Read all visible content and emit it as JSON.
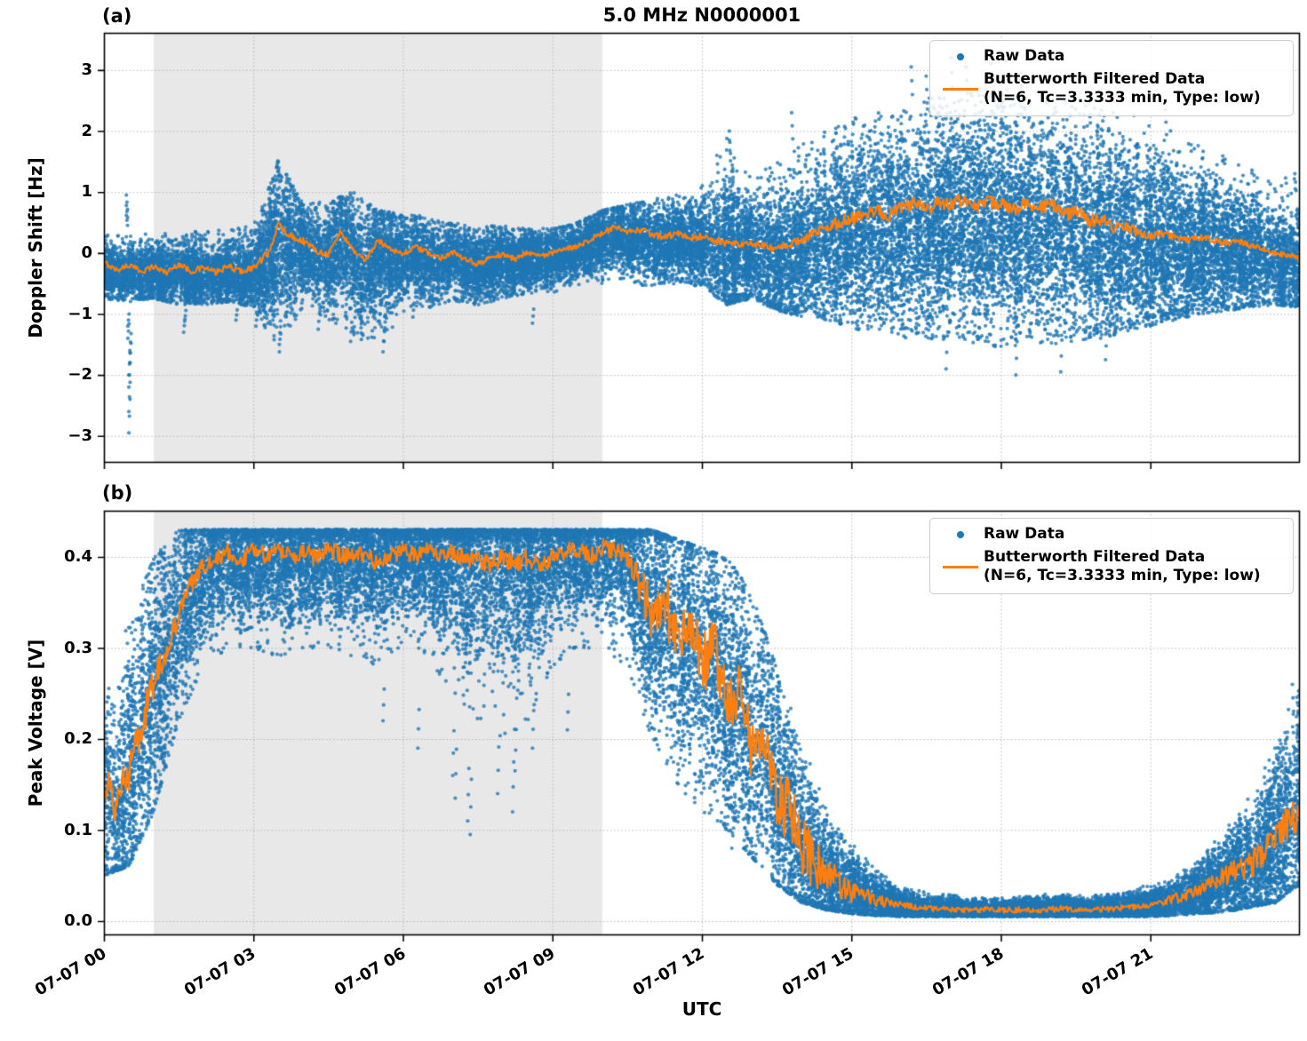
{
  "figure": {
    "title": "5.0 MHz N0000001",
    "xlabel": "UTC",
    "panel_a_tag": "(a)",
    "panel_b_tag": "(b)"
  },
  "legend": {
    "raw": "Raw Data",
    "filtered_line1": "Butterworth Filtered Data",
    "filtered_line2": "(N=6, Tc=3.3333 min, Type: low)"
  },
  "colors": {
    "raw": "#1f77b4",
    "filtered": "#ff7f0e",
    "shade": "#e8e8e8",
    "grid": "#b4b4b4",
    "spine": "#000000"
  },
  "xticks": {
    "hours": [
      0,
      3,
      6,
      9,
      12,
      15,
      18,
      21
    ],
    "labels": [
      "07-07 00",
      "07-07 03",
      "07-07 06",
      "07-07 09",
      "07-07 12",
      "07-07 15",
      "07-07 18",
      "07-07 21"
    ]
  },
  "shaded_hours": [
    1,
    10
  ],
  "chart_data": [
    {
      "id": "a",
      "type": "scatter",
      "title": "5.0 MHz N0000001",
      "xlabel": "UTC",
      "ylabel": "Doppler Shift [Hz]",
      "xlim_hours": [
        0,
        24
      ],
      "ylim": [
        -3.44,
        3.61
      ],
      "yticks": [
        3,
        2,
        1,
        0,
        -1,
        -2,
        -3
      ],
      "ytick_labels": [
        "3",
        "2",
        "1",
        "0",
        "−1",
        "−2",
        "−3"
      ],
      "xtick_labels": [
        "07-07 00",
        "07-07 03",
        "07-07 06",
        "07-07 09",
        "07-07 12",
        "07-07 15",
        "07-07 18",
        "07-07 21"
      ],
      "shaded_hours": [
        1,
        10
      ],
      "grid": "dotted",
      "legend_position": "upper right",
      "raw": {
        "name": "Raw Data",
        "color": "#1f77b4",
        "n": 30000,
        "core": 0.55,
        "tail": 0.05,
        "mode": "sym",
        "center_shift": -0.07,
        "envelope_t_step": 0.5,
        "envelope_lo": [
          -0.75,
          -0.8,
          -0.75,
          -0.85,
          -0.85,
          -0.8,
          -0.9,
          -1.6,
          -0.95,
          -1.1,
          -1.35,
          -1.6,
          -1.0,
          -0.9,
          -0.8,
          -0.85,
          -0.75,
          -0.7,
          -0.65,
          -0.55,
          -0.5,
          -0.5,
          -0.55,
          -0.5,
          -0.55,
          -0.85,
          -0.75,
          -0.95,
          -1.05,
          -1.1,
          -1.25,
          -1.3,
          -1.4,
          -1.4,
          -1.5,
          -1.5,
          -1.55,
          -1.5,
          -1.5,
          -1.45,
          -1.4,
          -1.3,
          -1.2,
          -1.1,
          -1.0,
          -0.95,
          -0.9,
          -0.85,
          -0.9
        ],
        "envelope_hi": [
          0.3,
          0.35,
          0.3,
          0.35,
          0.35,
          0.4,
          0.45,
          1.55,
          0.8,
          0.85,
          1.0,
          0.7,
          0.65,
          0.6,
          0.5,
          0.45,
          0.45,
          0.4,
          0.4,
          0.5,
          0.7,
          0.8,
          0.9,
          0.95,
          1.1,
          2.0,
          1.3,
          1.6,
          1.8,
          2.0,
          2.2,
          2.3,
          2.45,
          2.55,
          2.6,
          2.65,
          2.6,
          2.6,
          2.55,
          2.45,
          2.4,
          2.3,
          2.2,
          2.0,
          1.8,
          1.6,
          1.4,
          1.2,
          1.3
        ],
        "outliers": [
          [
            0.5,
            -2.95
          ],
          [
            0.5,
            -2.6
          ],
          [
            0.5,
            -2.2
          ],
          [
            0.5,
            -2.0
          ],
          [
            0.52,
            -1.8
          ],
          [
            0.52,
            -1.6
          ],
          [
            0.48,
            -1.4
          ],
          [
            0.48,
            -1.2
          ],
          [
            0.45,
            0.62
          ],
          [
            0.45,
            0.78
          ],
          [
            0.45,
            0.95
          ],
          [
            1.6,
            -1.3
          ],
          [
            1.62,
            -1.12
          ],
          [
            2.65,
            -1.1
          ],
          [
            3.05,
            -1.2
          ],
          [
            3.5,
            1.5
          ],
          [
            3.5,
            1.35
          ],
          [
            3.52,
            -1.5
          ],
          [
            3.52,
            -1.62
          ],
          [
            4.3,
            -1.25
          ],
          [
            4.95,
            -1.45
          ],
          [
            5.6,
            -1.62
          ],
          [
            5.62,
            -1.45
          ],
          [
            6.2,
            -1.05
          ],
          [
            8.6,
            -1.15
          ],
          [
            12.3,
            1.6
          ],
          [
            12.55,
            2.0
          ],
          [
            12.55,
            1.85
          ],
          [
            13.8,
            2.3
          ],
          [
            16.2,
            3.05
          ],
          [
            16.5,
            2.9
          ],
          [
            16.9,
            -1.9
          ],
          [
            17.0,
            3.2
          ],
          [
            17.3,
            3.05
          ],
          [
            17.8,
            3.1
          ],
          [
            18.1,
            3.15
          ],
          [
            18.4,
            2.95
          ],
          [
            18.3,
            -2.0
          ],
          [
            19.2,
            -1.95
          ],
          [
            20.1,
            -1.75
          ],
          [
            21.3,
            2.35
          ],
          [
            23.9,
            1.3
          ]
        ]
      },
      "filtered": {
        "name": "Butterworth Filtered Data (N=6, Tc=3.3333 min, Type: low)",
        "color": "#ff7f0e",
        "t_step_hours": 0.25,
        "v": [
          -0.15,
          -0.28,
          -0.2,
          -0.3,
          -0.22,
          -0.32,
          -0.18,
          -0.3,
          -0.24,
          -0.32,
          -0.22,
          -0.3,
          -0.24,
          -0.05,
          0.45,
          0.28,
          0.2,
          0.05,
          -0.02,
          0.35,
          0.05,
          -0.12,
          0.2,
          0.08,
          -0.02,
          0.1,
          0.0,
          -0.08,
          0.02,
          -0.12,
          -0.18,
          -0.08,
          -0.02,
          -0.1,
          0.02,
          -0.05,
          0.0,
          0.05,
          0.12,
          0.22,
          0.32,
          0.42,
          0.33,
          0.38,
          0.3,
          0.26,
          0.32,
          0.24,
          0.28,
          0.2,
          0.17,
          0.12,
          0.16,
          0.1,
          0.06,
          0.14,
          0.22,
          0.32,
          0.42,
          0.5,
          0.56,
          0.64,
          0.7,
          0.62,
          0.74,
          0.8,
          0.7,
          0.84,
          0.78,
          0.9,
          0.74,
          0.84,
          0.8,
          0.7,
          0.85,
          0.74,
          0.8,
          0.62,
          0.7,
          0.52,
          0.56,
          0.42,
          0.46,
          0.33,
          0.27,
          0.32,
          0.26,
          0.22,
          0.26,
          0.21,
          0.16,
          0.2,
          0.12,
          0.06,
          0.0,
          -0.04,
          -0.1
        ],
        "wiggle_t": [
          0,
          3,
          3.4,
          3.7,
          5,
          9,
          10,
          12,
          14,
          15,
          20,
          21,
          24
        ],
        "wiggle_a": [
          0.045,
          0.05,
          0.09,
          0.06,
          0.05,
          0.04,
          0.05,
          0.06,
          0.07,
          0.11,
          0.11,
          0.06,
          0.045
        ]
      }
    },
    {
      "id": "b",
      "type": "scatter",
      "title": "5.0 MHz N0000001",
      "xlabel": "UTC",
      "ylabel": "Peak Voltage [V]",
      "xlim_hours": [
        0,
        24
      ],
      "ylim": [
        -0.0156,
        0.4507
      ],
      "yticks": [
        0.4,
        0.3,
        0.2,
        0.1,
        0.0
      ],
      "ytick_labels": [
        "0.4",
        "0.3",
        "0.2",
        "0.1",
        "0.0"
      ],
      "xtick_labels": [
        "07-07 00",
        "07-07 03",
        "07-07 06",
        "07-07 09",
        "07-07 12",
        "07-07 15",
        "07-07 18",
        "07-07 21"
      ],
      "shaded_hours": [
        1,
        10
      ],
      "grid": "dotted",
      "legend_position": "upper right",
      "raw": {
        "name": "Raw Data",
        "color": "#1f77b4",
        "n": 28000,
        "core": 0.55,
        "tail": 0.1,
        "mode": "ceiling",
        "center_shift": 0,
        "envelope_t_step": 0.5,
        "envelope_lo": [
          0.05,
          0.06,
          0.12,
          0.22,
          0.28,
          0.3,
          0.3,
          0.29,
          0.3,
          0.3,
          0.29,
          0.28,
          0.3,
          0.29,
          0.25,
          0.22,
          0.2,
          0.22,
          0.28,
          0.3,
          0.3,
          0.28,
          0.2,
          0.15,
          0.12,
          0.1,
          0.07,
          0.04,
          0.02,
          0.012,
          0.008,
          0.006,
          0.005,
          0.005,
          0.005,
          0.005,
          0.005,
          0.005,
          0.005,
          0.005,
          0.005,
          0.005,
          0.005,
          0.006,
          0.008,
          0.01,
          0.015,
          0.02,
          0.04
        ],
        "envelope_hi": [
          0.27,
          0.33,
          0.4,
          0.43,
          0.43,
          0.43,
          0.43,
          0.43,
          0.43,
          0.43,
          0.43,
          0.43,
          0.43,
          0.43,
          0.43,
          0.43,
          0.43,
          0.43,
          0.43,
          0.43,
          0.43,
          0.43,
          0.43,
          0.42,
          0.41,
          0.4,
          0.36,
          0.28,
          0.2,
          0.14,
          0.1,
          0.06,
          0.04,
          0.032,
          0.03,
          0.028,
          0.028,
          0.03,
          0.032,
          0.03,
          0.03,
          0.035,
          0.04,
          0.05,
          0.07,
          0.1,
          0.14,
          0.2,
          0.28
        ],
        "outliers": [
          [
            5.6,
            0.22
          ],
          [
            6.3,
            0.19
          ],
          [
            7.0,
            0.16
          ],
          [
            7.05,
            0.135
          ],
          [
            7.3,
            0.11
          ],
          [
            7.35,
            0.095
          ],
          [
            7.9,
            0.14
          ],
          [
            8.2,
            0.12
          ],
          [
            8.25,
            0.165
          ],
          [
            8.6,
            0.19
          ],
          [
            9.3,
            0.21
          ],
          [
            12.6,
            0.08
          ],
          [
            23.85,
            0.26
          ],
          [
            23.95,
            0.24
          ]
        ]
      },
      "filtered": {
        "name": "Butterworth Filtered Data (N=6, Tc=3.3333 min, Type: low)",
        "color": "#ff7f0e",
        "t_step_hours": 0.25,
        "v": [
          0.155,
          0.125,
          0.165,
          0.215,
          0.26,
          0.3,
          0.335,
          0.37,
          0.39,
          0.4,
          0.405,
          0.395,
          0.41,
          0.4,
          0.41,
          0.4,
          0.405,
          0.398,
          0.41,
          0.4,
          0.4,
          0.405,
          0.39,
          0.4,
          0.41,
          0.4,
          0.408,
          0.4,
          0.405,
          0.398,
          0.4,
          0.39,
          0.4,
          0.392,
          0.4,
          0.39,
          0.4,
          0.405,
          0.408,
          0.4,
          0.41,
          0.408,
          0.4,
          0.37,
          0.33,
          0.36,
          0.3,
          0.33,
          0.28,
          0.3,
          0.24,
          0.26,
          0.19,
          0.21,
          0.14,
          0.12,
          0.085,
          0.065,
          0.05,
          0.04,
          0.032,
          0.027,
          0.023,
          0.02,
          0.018,
          0.016,
          0.014,
          0.013,
          0.013,
          0.012,
          0.012,
          0.013,
          0.012,
          0.012,
          0.013,
          0.012,
          0.013,
          0.014,
          0.013,
          0.012,
          0.013,
          0.014,
          0.015,
          0.016,
          0.018,
          0.021,
          0.025,
          0.028,
          0.033,
          0.04,
          0.05,
          0.056,
          0.062,
          0.072,
          0.09,
          0.108,
          0.118
        ],
        "wiggle_t": [
          0,
          0.5,
          1.8,
          10.5,
          11,
          14,
          15,
          16,
          21,
          22,
          23,
          24
        ],
        "wiggle_a": [
          0.02,
          0.025,
          0.01,
          0.01,
          0.035,
          0.035,
          0.012,
          0.003,
          0.003,
          0.008,
          0.015,
          0.02
        ]
      }
    }
  ]
}
